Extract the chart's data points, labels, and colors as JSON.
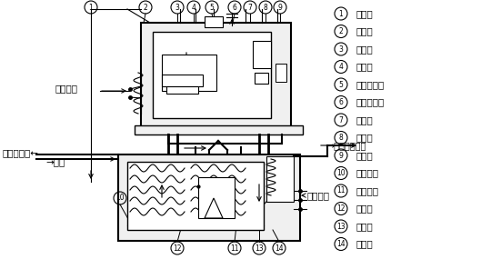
{
  "bg_color": "#ffffff",
  "legend_items": [
    [
      "1",
      "連結管"
    ],
    [
      "2",
      "接　点"
    ],
    [
      "3",
      "う　き"
    ],
    [
      "4",
      "電磁石"
    ],
    [
      "5",
      "防振おおい"
    ],
    [
      "6",
      "ガス抜き弁"
    ],
    [
      "7",
      "導　管"
    ],
    [
      "8",
      "ガス室"
    ],
    [
      "9",
      "油面計"
    ],
    [
      "10",
      "ピトー管"
    ],
    [
      "11",
      "ピトー管"
    ],
    [
      "12",
      "ベロー"
    ],
    [
      "13",
      "電磁石"
    ],
    [
      "14",
      "接　点"
    ]
  ]
}
